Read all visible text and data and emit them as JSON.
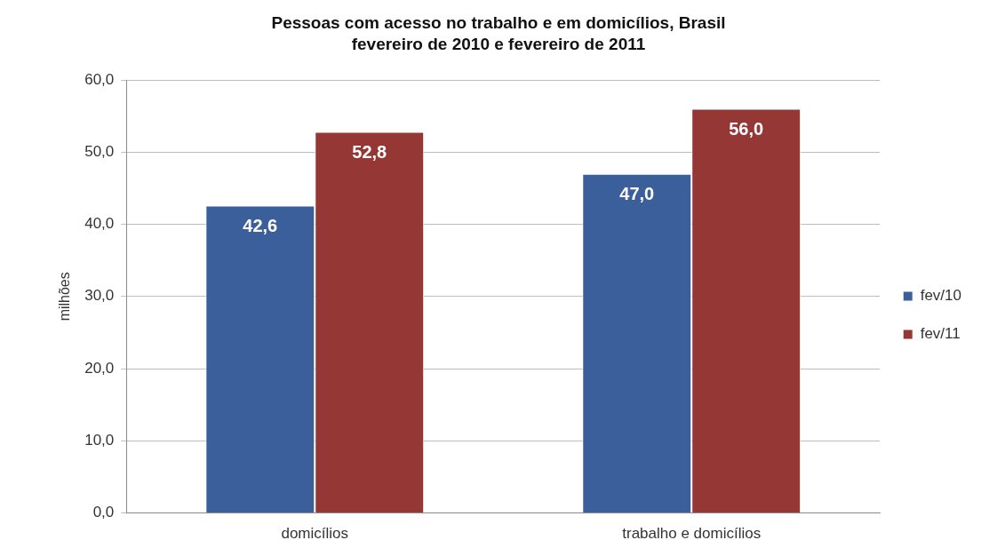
{
  "chart_data": {
    "type": "bar",
    "title": "Pessoas com acesso no trabalho e em domicílios, Brasil\nfevereiro de 2010 e fevereiro de 2011",
    "ylabel": "milhões",
    "categories": [
      "domicílios",
      "trabalho e domicílios"
    ],
    "series": [
      {
        "name": "fev/10",
        "color": "#3a5f9a",
        "values": [
          42.6,
          47.0
        ],
        "value_labels": [
          "42,6",
          "47,0"
        ]
      },
      {
        "name": "fev/11",
        "color": "#953735",
        "values": [
          52.8,
          56.0
        ],
        "value_labels": [
          "52,8",
          "56,0"
        ]
      }
    ],
    "ylim": [
      0,
      60
    ],
    "yticks": [
      {
        "value": 0,
        "label": "0,0"
      },
      {
        "value": 10,
        "label": "10,0"
      },
      {
        "value": 20,
        "label": "20,0"
      },
      {
        "value": 30,
        "label": "30,0"
      },
      {
        "value": 40,
        "label": "40,0"
      },
      {
        "value": 50,
        "label": "50,0"
      },
      {
        "value": 60,
        "label": "60,0"
      }
    ],
    "grid": "y",
    "legend": "right"
  }
}
